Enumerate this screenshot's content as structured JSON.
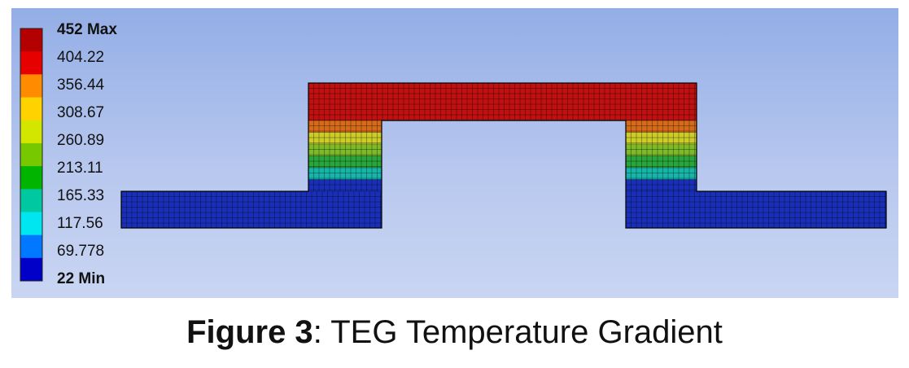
{
  "legend": {
    "colors": [
      "#0000c8",
      "#0078ff",
      "#00e6f0",
      "#00c8a0",
      "#00b400",
      "#78c800",
      "#d2e600",
      "#ffd200",
      "#ff8c00",
      "#e60000",
      "#b40000"
    ],
    "labels": [
      "452 Max",
      "404.22",
      "356.44",
      "308.67",
      "260.89",
      "213.11",
      "165.33",
      "117.56",
      "69.778",
      "22 Min"
    ],
    "max": 452,
    "min": 22
  },
  "model": {
    "mesh_line_color": "#000000",
    "band_colors": [
      "#1a2fb8",
      "#16b5a8",
      "#2aa53c",
      "#7dba2a",
      "#cccc28",
      "#d46a1a",
      "#c01010"
    ]
  },
  "caption": {
    "figure_label": "Figure 3",
    "separator": ":",
    "text": " TEG Temperature Gradient"
  }
}
